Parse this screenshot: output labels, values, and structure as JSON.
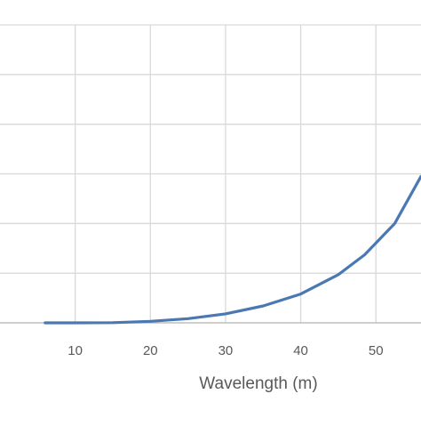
{
  "chart_data": {
    "type": "line",
    "title": "",
    "xlabel": "Wavelength (m)",
    "ylabel": "",
    "xlim": [
      0,
      56
    ],
    "ylim": [
      0,
      6
    ],
    "x_ticks": [
      10,
      20,
      30,
      40,
      50
    ],
    "grid": true,
    "legend": "none",
    "colors": {
      "line": "#4a78b3",
      "grid": "#d9d9d9",
      "axis": "#bfbfbf",
      "text": "#595959"
    },
    "series": [
      {
        "x": [
          6,
          10,
          15,
          20,
          25,
          30,
          35,
          40,
          45,
          48.5,
          52.5,
          56
        ],
        "y": [
          0,
          0,
          0.003,
          0.03,
          0.085,
          0.18,
          0.34,
          0.58,
          0.97,
          1.37,
          2.0,
          2.95
        ]
      }
    ]
  }
}
